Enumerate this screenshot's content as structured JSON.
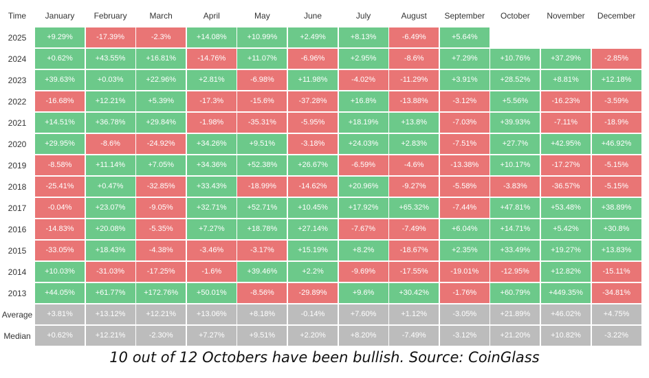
{
  "chart_data": {
    "type": "table",
    "corner_label": "Time",
    "months": [
      "January",
      "February",
      "March",
      "April",
      "May",
      "June",
      "July",
      "August",
      "September",
      "October",
      "November",
      "December"
    ],
    "years": [
      "2025",
      "2024",
      "2023",
      "2022",
      "2021",
      "2020",
      "2019",
      "2018",
      "2017",
      "2016",
      "2015",
      "2014",
      "2013"
    ],
    "values": [
      [
        "+9.29%",
        "-17.39%",
        "-2.3%",
        "+14.08%",
        "+10.99%",
        "+2.49%",
        "+8.13%",
        "-6.49%",
        "+5.64%",
        "",
        "",
        ""
      ],
      [
        "+0.62%",
        "+43.55%",
        "+16.81%",
        "-14.76%",
        "+11.07%",
        "-6.96%",
        "+2.95%",
        "-8.6%",
        "+7.29%",
        "+10.76%",
        "+37.29%",
        "-2.85%"
      ],
      [
        "+39.63%",
        "+0.03%",
        "+22.96%",
        "+2.81%",
        "-6.98%",
        "+11.98%",
        "-4.02%",
        "-11.29%",
        "+3.91%",
        "+28.52%",
        "+8.81%",
        "+12.18%"
      ],
      [
        "-16.68%",
        "+12.21%",
        "+5.39%",
        "-17.3%",
        "-15.6%",
        "-37.28%",
        "+16.8%",
        "-13.88%",
        "-3.12%",
        "+5.56%",
        "-16.23%",
        "-3.59%"
      ],
      [
        "+14.51%",
        "+36.78%",
        "+29.84%",
        "-1.98%",
        "-35.31%",
        "-5.95%",
        "+18.19%",
        "+13.8%",
        "-7.03%",
        "+39.93%",
        "-7.11%",
        "-18.9%"
      ],
      [
        "+29.95%",
        "-8.6%",
        "-24.92%",
        "+34.26%",
        "+9.51%",
        "-3.18%",
        "+24.03%",
        "+2.83%",
        "-7.51%",
        "+27.7%",
        "+42.95%",
        "+46.92%"
      ],
      [
        "-8.58%",
        "+11.14%",
        "+7.05%",
        "+34.36%",
        "+52.38%",
        "+26.67%",
        "-6.59%",
        "-4.6%",
        "-13.38%",
        "+10.17%",
        "-17.27%",
        "-5.15%"
      ],
      [
        "-25.41%",
        "+0.47%",
        "-32.85%",
        "+33.43%",
        "-18.99%",
        "-14.62%",
        "+20.96%",
        "-9.27%",
        "-5.58%",
        "-3.83%",
        "-36.57%",
        "-5.15%"
      ],
      [
        "-0.04%",
        "+23.07%",
        "-9.05%",
        "+32.71%",
        "+52.71%",
        "+10.45%",
        "+17.92%",
        "+65.32%",
        "-7.44%",
        "+47.81%",
        "+53.48%",
        "+38.89%"
      ],
      [
        "-14.83%",
        "+20.08%",
        "-5.35%",
        "+7.27%",
        "+18.78%",
        "+27.14%",
        "-7.67%",
        "-7.49%",
        "+6.04%",
        "+14.71%",
        "+5.42%",
        "+30.8%"
      ],
      [
        "-33.05%",
        "+18.43%",
        "-4.38%",
        "-3.46%",
        "-3.17%",
        "+15.19%",
        "+8.2%",
        "-18.67%",
        "+2.35%",
        "+33.49%",
        "+19.27%",
        "+13.83%"
      ],
      [
        "+10.03%",
        "-31.03%",
        "-17.25%",
        "-1.6%",
        "+39.46%",
        "+2.2%",
        "-9.69%",
        "-17.55%",
        "-19.01%",
        "-12.95%",
        "+12.82%",
        "-15.11%"
      ],
      [
        "+44.05%",
        "+61.77%",
        "+172.76%",
        "+50.01%",
        "-8.56%",
        "-29.89%",
        "+9.6%",
        "+30.42%",
        "-1.76%",
        "+60.79%",
        "+449.35%",
        "-34.81%"
      ]
    ],
    "summary_rows": [
      {
        "label": "Average",
        "values": [
          "+3.81%",
          "+13.12%",
          "+12.21%",
          "+13.06%",
          "+8.18%",
          "-0.14%",
          "+7.60%",
          "+1.12%",
          "-3.05%",
          "+21.89%",
          "+46.02%",
          "+4.75%"
        ]
      },
      {
        "label": "Median",
        "values": [
          "+0.62%",
          "+12.21%",
          "-2.30%",
          "+7.27%",
          "+9.51%",
          "+2.20%",
          "+8.20%",
          "-7.49%",
          "-3.12%",
          "+21.20%",
          "+10.82%",
          "-3.22%"
        ]
      }
    ],
    "colors": {
      "positive": "#6cc98a",
      "negative": "#e97575",
      "summary": "#bcbcbc"
    },
    "caption": "10 out of 12 Octobers have been bullish. Source: CoinGlass"
  }
}
